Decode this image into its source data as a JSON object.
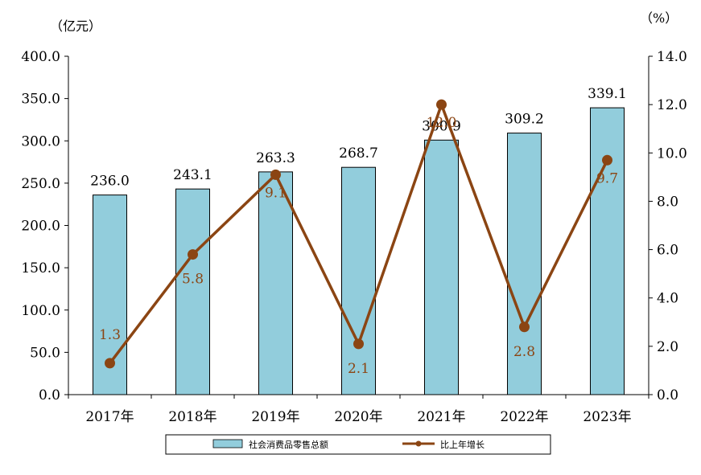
{
  "chart_data": {
    "type": "bar",
    "categories": [
      "2017年",
      "2018年",
      "2019年",
      "2020年",
      "2021年",
      "2022年",
      "2023年"
    ],
    "series": [
      {
        "name": "社会消费品零售总额",
        "type": "bar",
        "axis": "left",
        "values": [
          236.0,
          243.1,
          263.3,
          268.7,
          300.9,
          309.2,
          339.1
        ],
        "labels": [
          "236.0",
          "243.1",
          "263.3",
          "268.7",
          "300.9",
          "309.2",
          "339.1"
        ],
        "color": "#92CDDC"
      },
      {
        "name": "比上年增长",
        "type": "line",
        "axis": "right",
        "values": [
          1.3,
          5.8,
          9.1,
          2.1,
          12.0,
          2.8,
          9.7
        ],
        "labels": [
          "1.3",
          "5.8",
          "9.1",
          "2.1",
          "12.0",
          "2.8",
          "9.7"
        ],
        "color": "#8B4513"
      }
    ],
    "y_left": {
      "unit": "（亿元）",
      "range": [
        0,
        400
      ],
      "ticks": [
        "0.0",
        "50.0",
        "100.0",
        "150.0",
        "200.0",
        "250.0",
        "300.0",
        "350.0",
        "400.0"
      ]
    },
    "y_right": {
      "unit": "（%）",
      "range": [
        0,
        14
      ],
      "ticks": [
        "0.0",
        "2.0",
        "4.0",
        "6.0",
        "8.0",
        "10.0",
        "12.0",
        "14.0"
      ]
    },
    "grid": false,
    "legend_position": "bottom"
  }
}
